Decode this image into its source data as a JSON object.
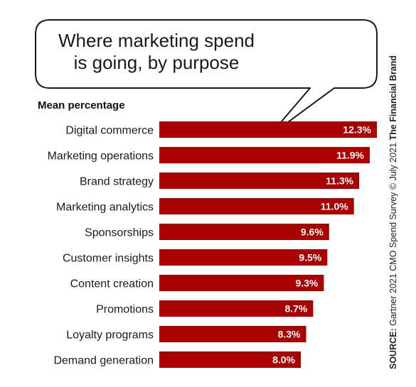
{
  "title_line1": "Where marketing spend",
  "title_line2": "is going, by purpose",
  "subtitle": "Mean percentage",
  "source": {
    "label": "SOURCE:",
    "text": " Gartner 2021 CMO Spend Survey © July 2021 ",
    "brand": "The Financial Brand"
  },
  "colors": {
    "bar": "#aa0000",
    "bar_label": "#ffffff",
    "category": "#1a1a1a"
  },
  "chart_data": {
    "type": "bar",
    "orientation": "horizontal",
    "title": "Where marketing spend is going, by purpose",
    "subtitle": "Mean percentage",
    "categories": [
      "Digital commerce",
      "Marketing operations",
      "Brand strategy",
      "Marketing analytics",
      "Sponsorships",
      "Customer insights",
      "Content creation",
      "Promotions",
      "Loyalty programs",
      "Demand generation"
    ],
    "values": [
      12.3,
      11.9,
      11.3,
      11.0,
      9.6,
      9.5,
      9.3,
      8.7,
      8.3,
      8.0
    ],
    "value_labels": [
      "12.3%",
      "11.9%",
      "11.3%",
      "11.0%",
      "9.6%",
      "9.5%",
      "9.3%",
      "8.7%",
      "8.3%",
      "8.0%"
    ],
    "grid": false,
    "legend": "none"
  }
}
